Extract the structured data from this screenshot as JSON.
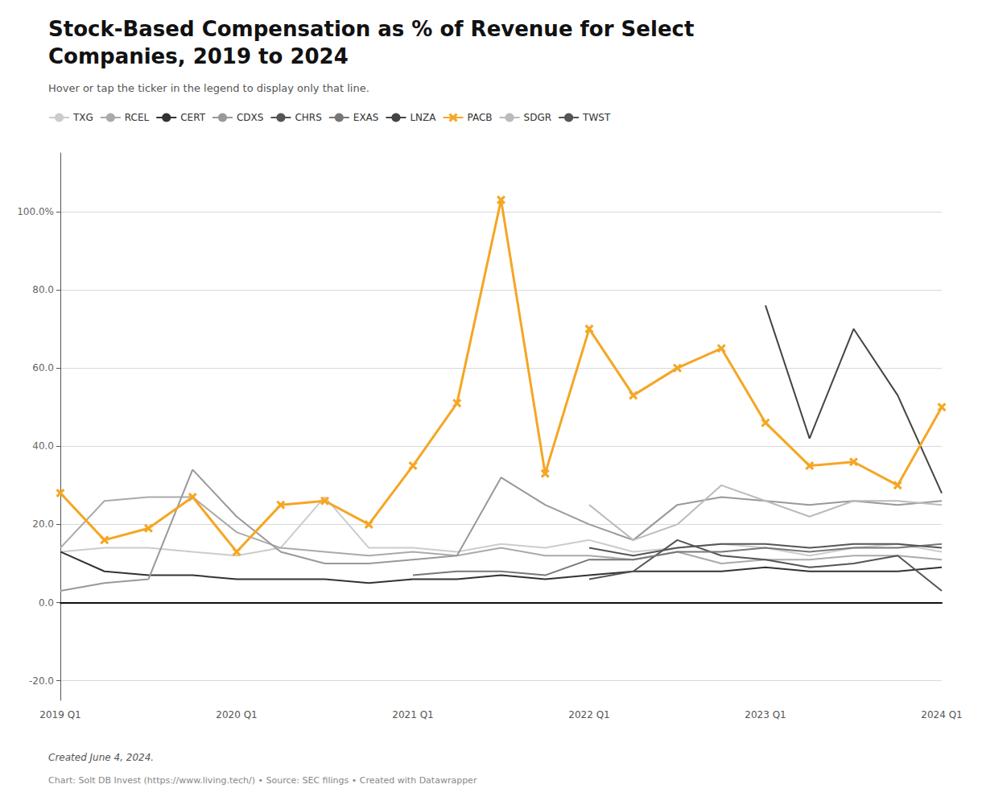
{
  "chart_data": {
    "type": "line",
    "title": "Stock-Based Compensation as % of Revenue for Select\nCompanies, 2019 to 2024",
    "subtitle": "Hover or tap the ticker in the legend to display only that line.",
    "annotations": [
      "Created June 4, 2024.",
      "Chart: Solt DB Invest (https://www.living.tech/) • Source: SEC filings • Created with Datawrapper"
    ],
    "categories": [
      "2019 Q1",
      null,
      null,
      null,
      "2020 Q1",
      null,
      null,
      null,
      "2021 Q1",
      null,
      null,
      null,
      "2022 Q1",
      null,
      null,
      null,
      "2023 Q1",
      null,
      null,
      null,
      "2024 Q1"
    ],
    "ylim": [
      -25,
      115
    ],
    "yticks": [
      {
        "value": -20,
        "label": "-20.0"
      },
      {
        "value": 0,
        "label": "0.0"
      },
      {
        "value": 20,
        "label": "20.0"
      },
      {
        "value": 40,
        "label": "40.0"
      },
      {
        "value": 60,
        "label": "60.0"
      },
      {
        "value": 80,
        "label": "80.0"
      },
      {
        "value": 100,
        "label": "100.0%"
      }
    ],
    "grid": true,
    "legend": "top",
    "series": [
      {
        "name": "TXG",
        "color": "#cccccc",
        "values": [
          13,
          14,
          14,
          13,
          12,
          14,
          27,
          14,
          14,
          13,
          15,
          14,
          16,
          13,
          14,
          15,
          14,
          12,
          14,
          15,
          13
        ]
      },
      {
        "name": "RCEL",
        "color": "#aaaaaa",
        "values": [
          14,
          26,
          27,
          27,
          18,
          14,
          13,
          12,
          13,
          12,
          14,
          12,
          12,
          11,
          13,
          10,
          11,
          11,
          12,
          12,
          11
        ]
      },
      {
        "name": "CERT",
        "color": "#333333",
        "values": [
          13,
          8,
          7,
          7,
          6,
          6,
          6,
          5,
          6,
          6,
          7,
          6,
          7,
          8,
          8,
          8,
          9,
          8,
          8,
          8,
          9
        ]
      },
      {
        "name": "CDXS",
        "color": "#999999",
        "values": [
          3,
          5,
          6,
          34,
          22,
          13,
          10,
          10,
          11,
          12,
          32,
          25,
          20,
          16,
          25,
          27,
          26,
          25,
          26,
          25,
          26
        ]
      },
      {
        "name": "CHRS",
        "color": "#555555",
        "values": [
          null,
          null,
          null,
          null,
          null,
          null,
          null,
          null,
          null,
          null,
          null,
          null,
          6,
          8,
          16,
          12,
          11,
          9,
          10,
          12,
          3
        ]
      },
      {
        "name": "EXAS",
        "color": "#777777",
        "values": [
          null,
          null,
          null,
          null,
          null,
          null,
          null,
          null,
          7,
          8,
          8,
          7,
          11,
          11,
          13,
          13,
          14,
          13,
          14,
          14,
          15
        ]
      },
      {
        "name": "LNZA",
        "color": "#444444",
        "values": [
          null,
          null,
          null,
          null,
          null,
          null,
          null,
          null,
          null,
          null,
          null,
          null,
          null,
          null,
          null,
          null,
          76,
          42,
          70,
          53,
          28
        ]
      },
      {
        "name": "PACB",
        "color": "#f5a623",
        "marker": "x",
        "values": [
          28,
          16,
          19,
          27,
          13,
          25,
          26,
          20,
          35,
          51,
          103,
          33,
          70,
          53,
          60,
          65,
          46,
          35,
          36,
          30,
          50
        ]
      },
      {
        "name": "SDGR",
        "color": "#bbbbbb",
        "values": [
          null,
          null,
          null,
          null,
          null,
          null,
          null,
          null,
          null,
          null,
          null,
          null,
          25,
          16,
          20,
          30,
          26,
          22,
          26,
          26,
          25
        ]
      },
      {
        "name": "TWST",
        "color": "#555555",
        "values": [
          null,
          null,
          null,
          null,
          null,
          null,
          null,
          null,
          null,
          null,
          null,
          null,
          14,
          12,
          14,
          15,
          15,
          14,
          15,
          15,
          14
        ]
      }
    ]
  }
}
